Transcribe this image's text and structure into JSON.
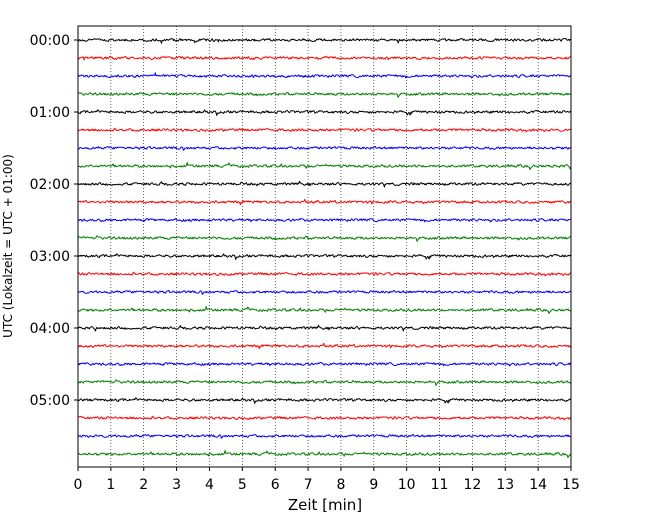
{
  "chart_data": {
    "type": "line",
    "title": "",
    "xlabel": "Zeit  [min]",
    "ylabel": "UTC (Lokalzeit = UTC + 01:00)",
    "xlim": [
      0,
      15
    ],
    "x_ticks": [
      "0",
      "1",
      "2",
      "3",
      "4",
      "5",
      "6",
      "7",
      "8",
      "9",
      "10",
      "11",
      "12",
      "13",
      "14",
      "15"
    ],
    "y_tick_labels": [
      "00:00",
      "01:00",
      "02:00",
      "03:00",
      "04:00",
      "05:00"
    ],
    "trace_interval_minutes": 15,
    "trace_start_times": [
      "00:00",
      "00:15",
      "00:30",
      "00:45",
      "01:00",
      "01:15",
      "01:30",
      "01:45",
      "02:00",
      "02:15",
      "02:30",
      "02:45",
      "03:00",
      "03:15",
      "03:30",
      "03:45",
      "04:00",
      "04:15",
      "04:30",
      "04:45",
      "05:00",
      "05:15",
      "05:30",
      "05:45"
    ],
    "color_cycle": [
      "#000000",
      "#ff0000",
      "#0000ff",
      "#008000"
    ],
    "vertical_grid": "dotted, every 1 min",
    "legend": "none"
  }
}
